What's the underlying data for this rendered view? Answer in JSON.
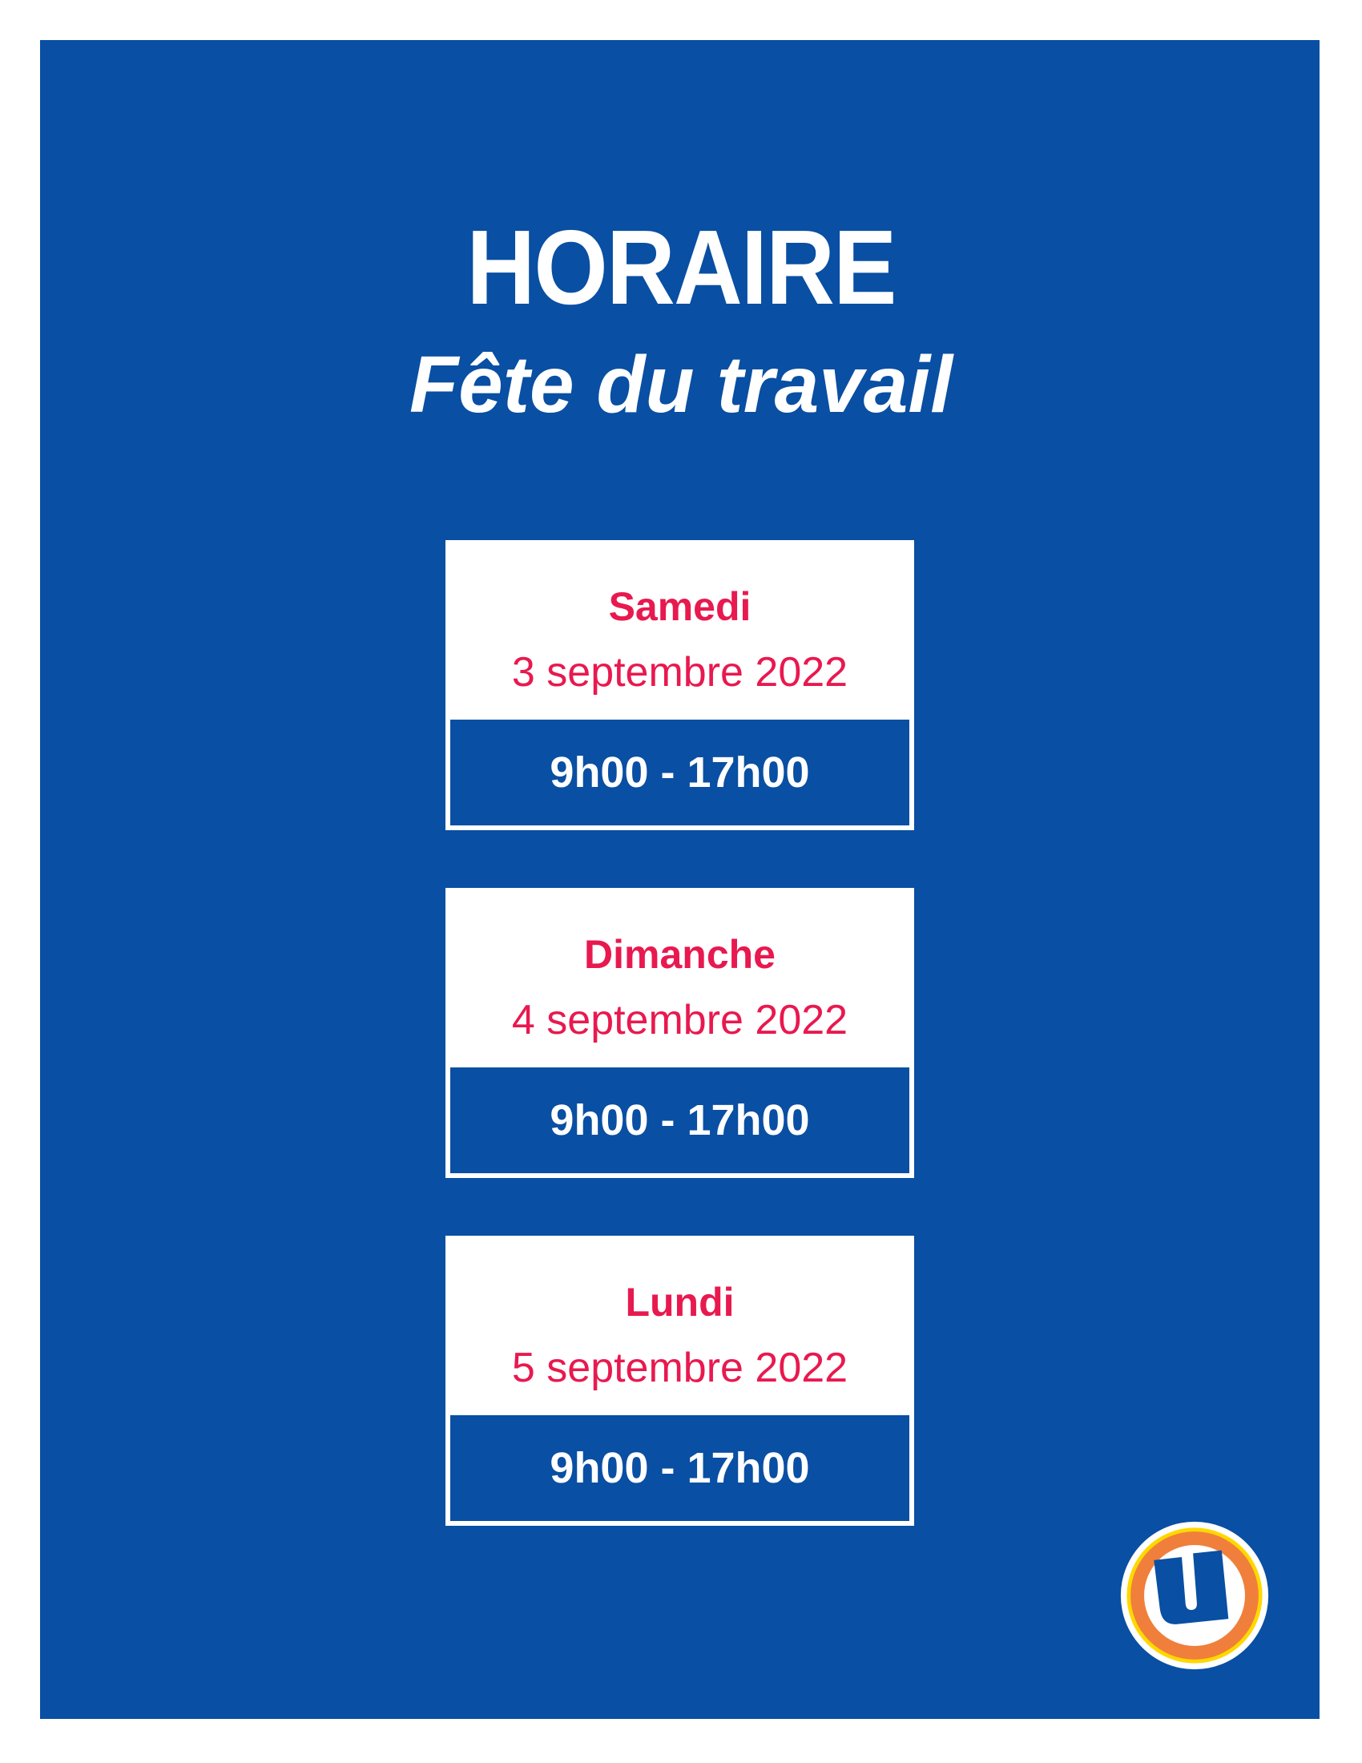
{
  "header": {
    "title": "HORAIRE",
    "subtitle": "Fête du travail"
  },
  "schedule": [
    {
      "day": "Samedi",
      "date": "3 septembre 2022",
      "hours": "9h00 - 17h00"
    },
    {
      "day": "Dimanche",
      "date": "4 septembre 2022",
      "hours": "9h00 - 17h00"
    },
    {
      "day": "Lundi",
      "date": "5 septembre 2022",
      "hours": "9h00 - 17h00"
    }
  ],
  "colors": {
    "background": "#094fa3",
    "accent": "#e8194f",
    "logo_ring": "#f07f3c",
    "logo_outer": "#ffd800"
  },
  "logo": {
    "icon": "u-logo-icon",
    "letter": "U"
  }
}
